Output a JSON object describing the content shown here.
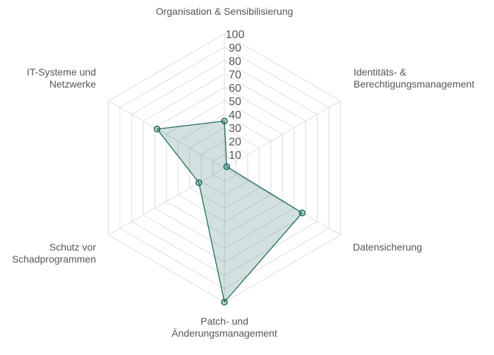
{
  "chart_data": {
    "type": "radar",
    "axes": [
      {
        "label_lines": [
          "Organisation & Sensibilisierung"
        ],
        "value": 35
      },
      {
        "label_lines": [
          "Identitäts- &",
          "Berechtigungsmanagement"
        ],
        "value": 2
      },
      {
        "label_lines": [
          "Datensicherung"
        ],
        "value": 67
      },
      {
        "label_lines": [
          "Patch- und",
          "Änderungsmanagement"
        ],
        "value": 100
      },
      {
        "label_lines": [
          "Schutz vor",
          "Schadprogrammen"
        ],
        "value": 22
      },
      {
        "label_lines": [
          "IT-Systeme und",
          "Netzwerke"
        ],
        "value": 58
      }
    ],
    "rmin": 0,
    "rmax": 100,
    "ticks": [
      10,
      20,
      30,
      40,
      50,
      60,
      70,
      80,
      90,
      100
    ],
    "grid": true,
    "colors": {
      "line": "#1e6b5f",
      "fill": "#1e6b5f",
      "grid": "#dddddd"
    }
  }
}
